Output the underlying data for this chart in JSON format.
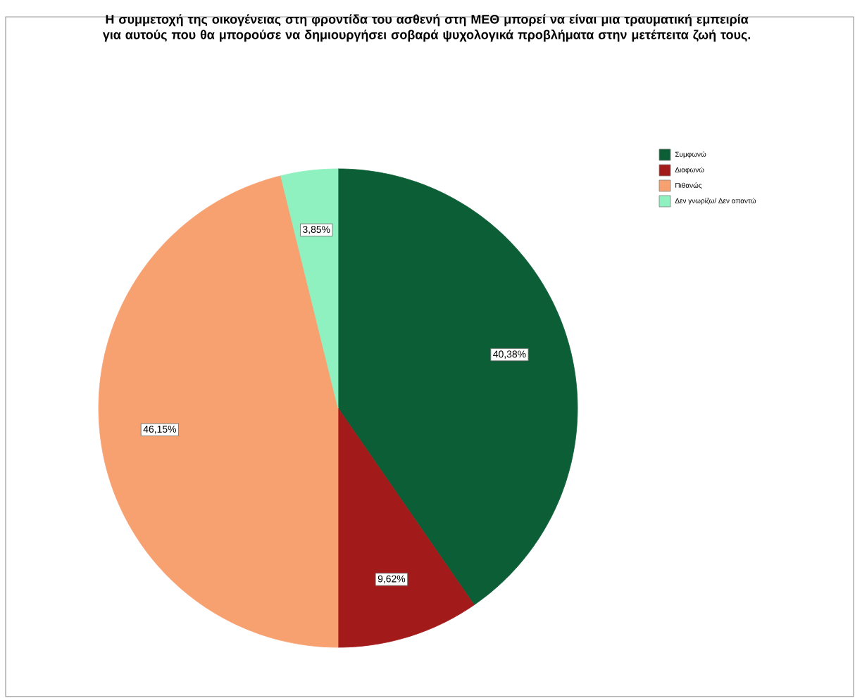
{
  "chart_data": {
    "type": "pie",
    "title": "Η συμμετοχή της οικογένειας στη φροντίδα του ασθενή στη ΜΕΘ μπορεί να είναι μια τραυματική εμπειρία για αυτούς που θα μπορούσε να δημιουργήσει σοβαρά ψυχολογικά προβλήματα στην μετέπειτα ζωή τους.",
    "categories": [
      "Συμφωνώ",
      "Διαφωνώ",
      "Πιθανώς",
      "Δεν γνωρίζω/ Δεν απαντώ"
    ],
    "values": [
      40.38,
      9.62,
      46.15,
      3.85
    ],
    "value_labels": [
      "40,38%",
      "9,62%",
      "46,15%",
      "3,85%"
    ],
    "colors": [
      "#0b5e35",
      "#a31a1a",
      "#f7a070",
      "#8ff0c0"
    ],
    "legend": "top right"
  }
}
